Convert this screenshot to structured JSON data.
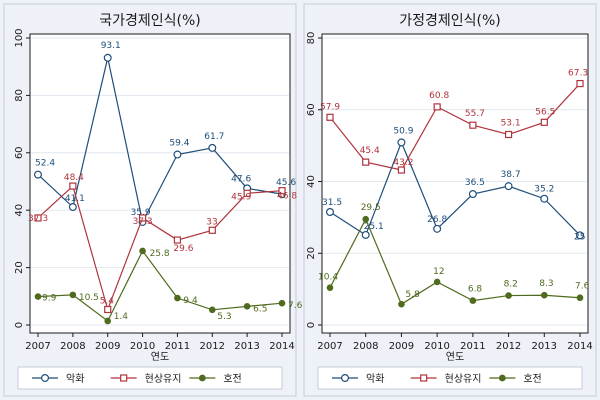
{
  "colors": {
    "background": "#eef1f8",
    "plot_area": "#ffffff",
    "grid": "#e2e7f0",
    "axis": "#1a1a1a",
    "series": [
      "#1f4e79",
      "#b0343c",
      "#4f6b1e"
    ]
  },
  "chart_data": [
    {
      "type": "line",
      "title": "국가경제인식(%)",
      "xlabel": "연도",
      "ylabel": "",
      "x": [
        2007,
        2008,
        2009,
        2010,
        2011,
        2012,
        2013,
        2014
      ],
      "x_tick_labels": [
        "2007",
        "2008",
        "2009",
        "2010",
        "2011",
        "2012",
        "2013",
        "2014"
      ],
      "ylim": [
        0,
        100
      ],
      "y_ticks": [
        0,
        20,
        40,
        60,
        80,
        100
      ],
      "y_tick_labels": [
        "0",
        "20",
        "40",
        "60",
        "80",
        "100"
      ],
      "grid": true,
      "legend_position": "bottom",
      "series": [
        {
          "name": "악화",
          "marker": "circle",
          "values": [
            52.4,
            41.1,
            93.1,
            35.9,
            59.4,
            61.7,
            47.6,
            45.6
          ],
          "labels": [
            "52.4",
            "41.1",
            "93.1",
            "35.9",
            "59.4",
            "61.7",
            "47.6",
            "45.6"
          ]
        },
        {
          "name": "현상유지",
          "marker": "square",
          "values": [
            37.3,
            48.4,
            5.4,
            37.3,
            29.6,
            33,
            45.9,
            46.8
          ],
          "labels": [
            "37.3",
            "48.4",
            "5.4",
            "37.3",
            "29.6",
            "33",
            "45.9",
            "46.8"
          ]
        },
        {
          "name": "호전",
          "marker": "dot",
          "values": [
            9.9,
            10.5,
            1.4,
            25.8,
            9.4,
            5.3,
            6.5,
            7.6
          ],
          "labels": [
            "9.9",
            "10.5",
            "1.4",
            "25.8",
            "9.4",
            "5.3",
            "6.5",
            "7.6"
          ]
        }
      ]
    },
    {
      "type": "line",
      "title": "가정경제인식(%)",
      "xlabel": "연도",
      "ylabel": "",
      "x": [
        2007,
        2008,
        2009,
        2010,
        2011,
        2012,
        2013,
        2014
      ],
      "x_tick_labels": [
        "2007",
        "2008",
        "2009",
        "2010",
        "2011",
        "2012",
        "2013",
        "2014"
      ],
      "ylim": [
        0,
        80
      ],
      "y_ticks": [
        0,
        20,
        40,
        60,
        80
      ],
      "y_tick_labels": [
        "0",
        "20",
        "40",
        "60",
        "80"
      ],
      "grid": true,
      "legend_position": "bottom",
      "series": [
        {
          "name": "악화",
          "marker": "circle",
          "values": [
            31.5,
            25.1,
            50.9,
            26.8,
            36.5,
            38.7,
            35.2,
            25
          ],
          "labels": [
            "31.5",
            "25.1",
            "50.9",
            "26.8",
            "36.5",
            "38.7",
            "35.2",
            "25"
          ]
        },
        {
          "name": "현상유지",
          "marker": "square",
          "values": [
            57.9,
            45.4,
            43.2,
            60.8,
            55.7,
            53.1,
            56.5,
            67.3
          ],
          "labels": [
            "57.9",
            "45.4",
            "43.2",
            "60.8",
            "55.7",
            "53.1",
            "56.5",
            "67.3"
          ]
        },
        {
          "name": "호전",
          "marker": "dot",
          "values": [
            10.4,
            29.5,
            5.8,
            12,
            6.8,
            8.2,
            8.3,
            7.6
          ],
          "labels": [
            "10.4",
            "29.5",
            "5.8",
            "12",
            "6.8",
            "8.2",
            "8.3",
            "7.6"
          ]
        }
      ]
    }
  ]
}
